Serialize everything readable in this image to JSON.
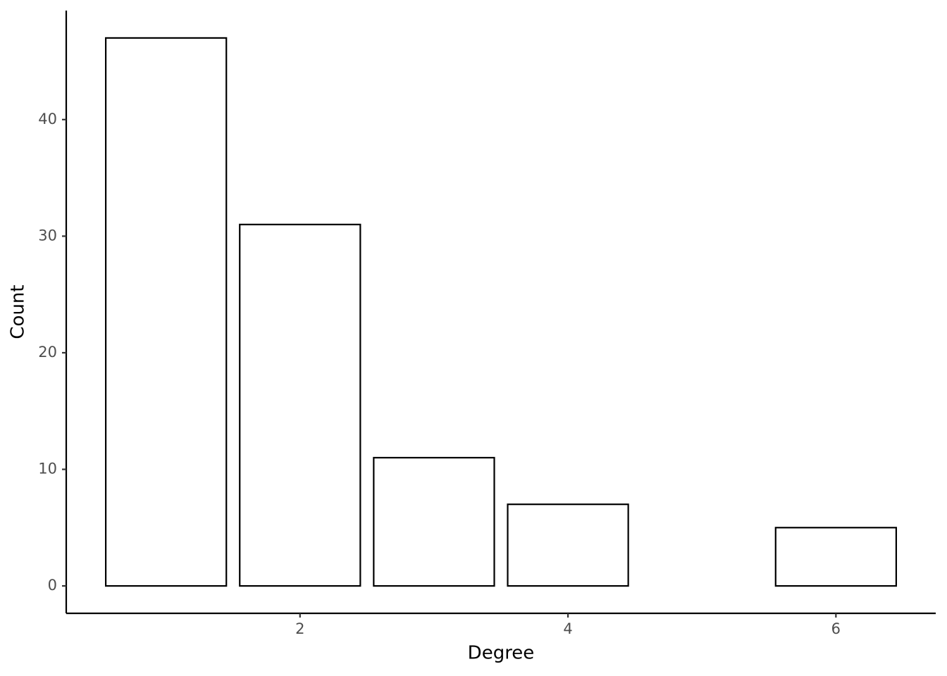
{
  "chart_data": {
    "type": "bar",
    "x_label": "Degree",
    "y_label": "Count",
    "x": [
      1,
      2,
      3,
      4,
      6
    ],
    "values": [
      47,
      31,
      11,
      7,
      5
    ],
    "color": "#ffffff",
    "edge_color": "#000000",
    "xlim": [
      0.255,
      6.745
    ],
    "xticks": [
      2,
      4,
      6
    ],
    "ylim": [
      -2.35,
      49.35
    ],
    "yticks": [
      0,
      10,
      20,
      30,
      40
    ],
    "grid": false
  }
}
